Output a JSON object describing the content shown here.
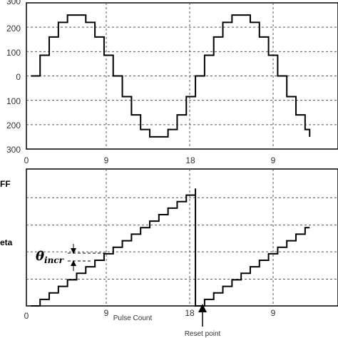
{
  "chart_data": [
    {
      "type": "line",
      "step": true,
      "x_ticks": [
        "0",
        "9",
        "18",
        "9"
      ],
      "y_ticks": [
        "300",
        "200",
        "100",
        "0",
        "100",
        "200",
        "300"
      ],
      "xlim": [
        0,
        31
      ],
      "ylim": [
        -300,
        300
      ],
      "grid": true,
      "series": [
        {
          "x": [
            0.5,
            1.5,
            2.5,
            3.5,
            4.5,
            5.5,
            6.5,
            7.5,
            8.5,
            9.5,
            10.5,
            11.5,
            12.5,
            13.5,
            14.5,
            15.5,
            16.5,
            17.5,
            18.5,
            19.5,
            20.5,
            21.5,
            22.5,
            23.5,
            24.5,
            25.5,
            26.5,
            27.5,
            28.5,
            29.5,
            30.5,
            31
          ],
          "y": [
            0,
            85,
            160,
            220,
            250,
            250,
            220,
            160,
            85,
            0,
            -85,
            -160,
            -220,
            -250,
            -250,
            -220,
            -160,
            -85,
            0,
            85,
            160,
            220,
            250,
            250,
            220,
            160,
            85,
            0,
            -85,
            -160,
            -220,
            -250
          ]
        }
      ]
    },
    {
      "type": "line",
      "step": true,
      "x_ticks": [
        "0",
        "9",
        "Pulse Count",
        "18",
        "9"
      ],
      "ylim": [
        0,
        21
      ],
      "xlim": [
        0,
        31
      ],
      "grid": true,
      "labels": {
        "ff": "FF",
        "theta_side": "eta",
        "theta_symbol": "θ",
        "theta_sub": "incr",
        "reset": "Reset point"
      },
      "series": [
        {
          "x": [
            0.5,
            1.5,
            2.5,
            3.5,
            4.5,
            5.5,
            6.5,
            7.5,
            8.5,
            9.5,
            10.5,
            11.5,
            12.5,
            13.5,
            14.5,
            15.5,
            16.5,
            17.5,
            18.5,
            18.5,
            19.5,
            20.5,
            21.5,
            22.5,
            23.5,
            24.5,
            25.5,
            26.5,
            27.5,
            28.5,
            29.5,
            30.5,
            31
          ],
          "y": [
            0,
            1,
            2,
            3,
            4,
            5,
            6,
            7,
            8,
            9,
            10,
            11,
            12,
            13,
            14,
            15,
            16,
            17,
            18,
            0,
            1,
            2,
            3,
            4,
            5,
            6,
            7,
            8,
            9,
            10,
            11,
            12,
            12
          ]
        }
      ]
    }
  ]
}
